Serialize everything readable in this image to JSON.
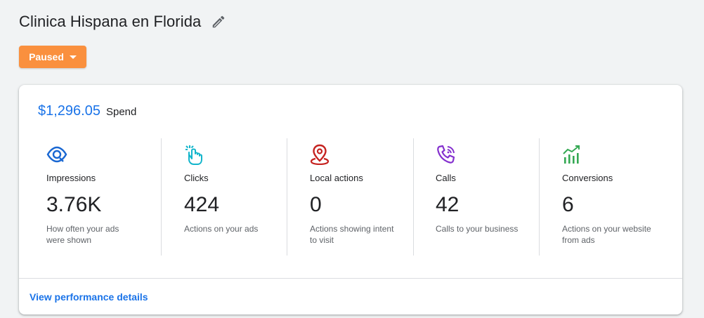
{
  "header": {
    "title": "Clinica Hispana en Florida",
    "status_label": "Paused",
    "status_color": "#fa903e"
  },
  "summary": {
    "spend_amount": "$1,296.05",
    "spend_label": "Spend"
  },
  "metrics": [
    {
      "icon": "eye-icon",
      "label": "Impressions",
      "value": "3.76K",
      "description": "How often your ads were shown",
      "color": "#1967d2"
    },
    {
      "icon": "tap-icon",
      "label": "Clicks",
      "value": "424",
      "description": "Actions on your ads",
      "color": "#12b5cb"
    },
    {
      "icon": "location-pin-icon",
      "label": "Local actions",
      "value": "0",
      "description": "Actions showing intent to visit",
      "color": "#c5221f"
    },
    {
      "icon": "phone-call-icon",
      "label": "Calls",
      "value": "42",
      "description": "Calls to your business",
      "color": "#8430ce"
    },
    {
      "icon": "conversions-chart-icon",
      "label": "Conversions",
      "value": "6",
      "description": "Actions on your website from ads",
      "color": "#34a853"
    }
  ],
  "footer": {
    "details_link": "View performance details"
  }
}
